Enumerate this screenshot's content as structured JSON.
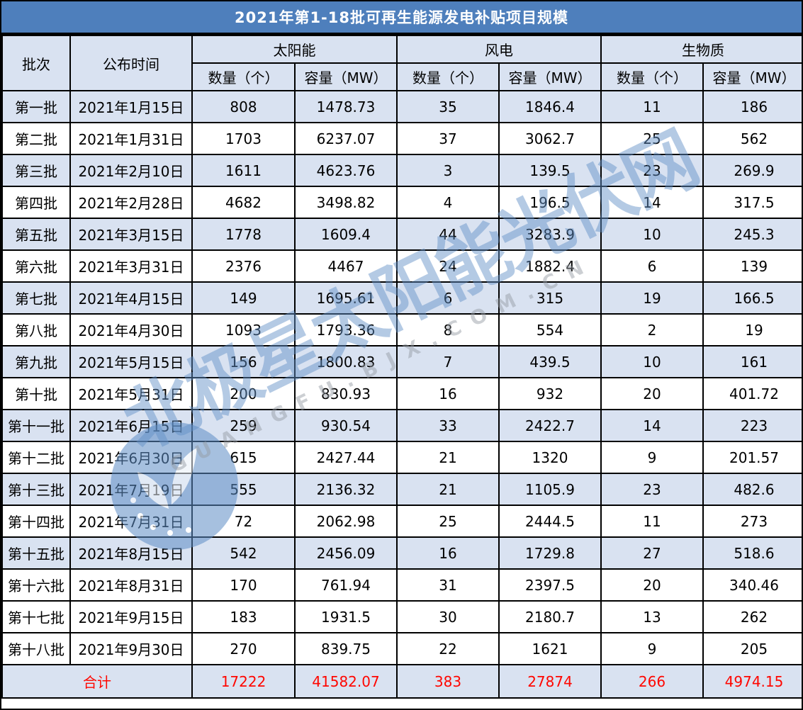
{
  "title": "2021年第1-18批可再生能源发电补贴项目规模",
  "header": {
    "batch": "批次",
    "publish_time": "公布时间",
    "groups": [
      "太阳能",
      "风电",
      "生物质"
    ],
    "count": "数量（个）",
    "capacity": "容量（MW）"
  },
  "rows": [
    {
      "batch": "第一批",
      "date": "2021年1月15日",
      "values": [
        "808",
        "1478.73",
        "35",
        "1846.4",
        "11",
        "186"
      ]
    },
    {
      "batch": "第二批",
      "date": "2021年1月31日",
      "values": [
        "1703",
        "6237.07",
        "37",
        "3062.7",
        "25",
        "562"
      ]
    },
    {
      "batch": "第三批",
      "date": "2021年2月10日",
      "values": [
        "1611",
        "4623.76",
        "3",
        "139.5",
        "23",
        "269.9"
      ]
    },
    {
      "batch": "第四批",
      "date": "2021年2月28日",
      "values": [
        "4682",
        "3498.82",
        "4",
        "196.5",
        "14",
        "317.5"
      ]
    },
    {
      "batch": "第五批",
      "date": "2021年3月15日",
      "values": [
        "1778",
        "1609.4",
        "44",
        "3283.9",
        "10",
        "245.3"
      ]
    },
    {
      "batch": "第六批",
      "date": "2021年3月31日",
      "values": [
        "2376",
        "4467",
        "24",
        "1882.4",
        "6",
        "139"
      ]
    },
    {
      "batch": "第七批",
      "date": "2021年4月15日",
      "values": [
        "149",
        "1695.61",
        "6",
        "315",
        "19",
        "166.5"
      ]
    },
    {
      "batch": "第八批",
      "date": "2021年4月30日",
      "values": [
        "1093",
        "1793.36",
        "8",
        "554",
        "2",
        "19"
      ]
    },
    {
      "batch": "第九批",
      "date": "2021年5月15日",
      "values": [
        "156",
        "1800.83",
        "7",
        "439.5",
        "10",
        "161"
      ]
    },
    {
      "batch": "第十批",
      "date": "2021年5月31日",
      "values": [
        "200",
        "830.93",
        "16",
        "932",
        "20",
        "401.72"
      ]
    },
    {
      "batch": "第十一批",
      "date": "2021年6月15日",
      "values": [
        "259",
        "930.54",
        "33",
        "2422.7",
        "14",
        "223"
      ]
    },
    {
      "batch": "第十二批",
      "date": "2021年6月30日",
      "values": [
        "615",
        "2427.44",
        "21",
        "1320",
        "9",
        "201.57"
      ]
    },
    {
      "batch": "第十三批",
      "date": "2021年7月19日",
      "values": [
        "555",
        "2136.32",
        "21",
        "1105.9",
        "23",
        "482.6"
      ]
    },
    {
      "batch": "第十四批",
      "date": "2021年7月31日",
      "values": [
        "72",
        "2062.98",
        "25",
        "2444.5",
        "11",
        "273"
      ]
    },
    {
      "batch": "第十五批",
      "date": "2021年8月15日",
      "values": [
        "542",
        "2456.09",
        "16",
        "1729.8",
        "27",
        "518.6"
      ]
    },
    {
      "batch": "第十六批",
      "date": "2021年8月31日",
      "values": [
        "170",
        "761.94",
        "31",
        "2397.5",
        "20",
        "340.46"
      ]
    },
    {
      "batch": "第十七批",
      "date": "2021年9月15日",
      "values": [
        "183",
        "1931.5",
        "30",
        "2180.7",
        "13",
        "262"
      ]
    },
    {
      "batch": "第十八批",
      "date": "2021年9月30日",
      "values": [
        "270",
        "839.75",
        "22",
        "1621",
        "9",
        "205"
      ]
    }
  ],
  "total": {
    "label": "合计",
    "values": [
      "17222",
      "41582.07",
      "383",
      "27874",
      "266",
      "4974.15"
    ]
  },
  "watermark": {
    "cn": "北极星太阳能光伏网",
    "en": "GUANGFU.BJX.COM.CN"
  },
  "colors": {
    "title_bar": "#4E7FBC",
    "shaded_row": "#D9E2F1",
    "white_row": "#FFFFFF",
    "border": "#000000",
    "title_text": "#FFFFFF",
    "total_text": "#FF0600",
    "watermark_blue": "#6290C7"
  },
  "chart_data": {
    "type": "table",
    "title": "2021年第1-18批可再生能源发电补贴项目规模",
    "column_groups": [
      "太阳能",
      "风电",
      "生物质"
    ],
    "columns": [
      "批次",
      "公布时间",
      "太阳能 数量（个）",
      "太阳能 容量（MW）",
      "风电 数量（个）",
      "风电 容量（MW）",
      "生物质 数量（个）",
      "生物质 容量（MW）"
    ],
    "rows": [
      [
        "第一批",
        "2021年1月15日",
        808,
        1478.73,
        35,
        1846.4,
        11,
        186
      ],
      [
        "第二批",
        "2021年1月31日",
        1703,
        6237.07,
        37,
        3062.7,
        25,
        562
      ],
      [
        "第三批",
        "2021年2月10日",
        1611,
        4623.76,
        3,
        139.5,
        23,
        269.9
      ],
      [
        "第四批",
        "2021年2月28日",
        4682,
        3498.82,
        4,
        196.5,
        14,
        317.5
      ],
      [
        "第五批",
        "2021年3月15日",
        1778,
        1609.4,
        44,
        3283.9,
        10,
        245.3
      ],
      [
        "第六批",
        "2021年3月31日",
        2376,
        4467,
        24,
        1882.4,
        6,
        139
      ],
      [
        "第七批",
        "2021年4月15日",
        149,
        1695.61,
        6,
        315,
        19,
        166.5
      ],
      [
        "第八批",
        "2021年4月30日",
        1093,
        1793.36,
        8,
        554,
        2,
        19
      ],
      [
        "第九批",
        "2021年5月15日",
        156,
        1800.83,
        7,
        439.5,
        10,
        161
      ],
      [
        "第十批",
        "2021年5月31日",
        200,
        830.93,
        16,
        932,
        20,
        401.72
      ],
      [
        "第十一批",
        "2021年6月15日",
        259,
        930.54,
        33,
        2422.7,
        14,
        223
      ],
      [
        "第十二批",
        "2021年6月30日",
        615,
        2427.44,
        21,
        1320,
        9,
        201.57
      ],
      [
        "第十三批",
        "2021年7月19日",
        555,
        2136.32,
        21,
        1105.9,
        23,
        482.6
      ],
      [
        "第十四批",
        "2021年7月31日",
        72,
        2062.98,
        25,
        2444.5,
        11,
        273
      ],
      [
        "第十五批",
        "2021年8月15日",
        542,
        2456.09,
        16,
        1729.8,
        27,
        518.6
      ],
      [
        "第十六批",
        "2021年8月31日",
        170,
        761.94,
        31,
        2397.5,
        20,
        340.46
      ],
      [
        "第十七批",
        "2021年9月15日",
        183,
        1931.5,
        30,
        2180.7,
        13,
        262
      ],
      [
        "第十八批",
        "2021年9月30日",
        270,
        839.75,
        22,
        1621,
        9,
        205
      ]
    ],
    "total_row": [
      "合计",
      17222,
      41582.07,
      383,
      27874,
      266,
      4974.15
    ]
  }
}
